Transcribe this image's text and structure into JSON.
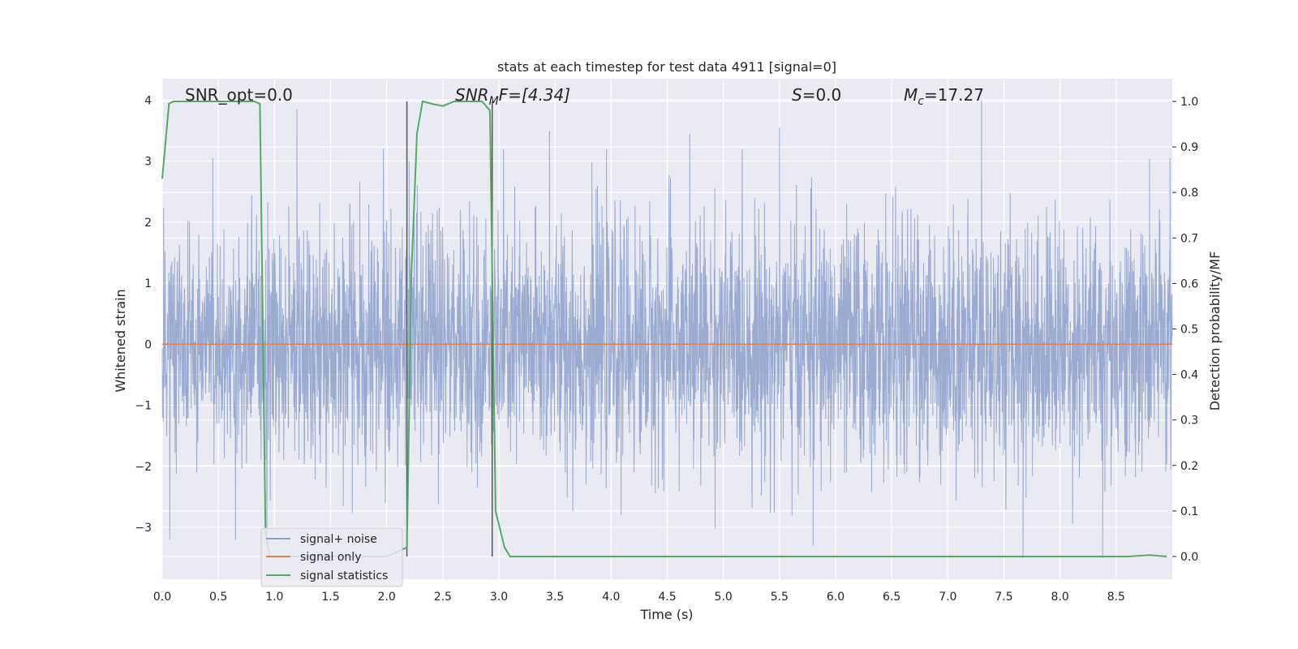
{
  "chart_data": {
    "type": "line",
    "title": "stats at each timestep for test data 4911 [signal=0]",
    "xlabel": "Time (s)",
    "ylabel": "Whitened strain",
    "ylabel_right": "Detection probability/MF",
    "xlim": [
      0.0,
      9.0
    ],
    "ylim": [
      -3.85,
      4.35
    ],
    "ylim_right": [
      -0.05,
      1.05
    ],
    "x_ticks": [
      "0.0",
      "0.5",
      "1.0",
      "1.5",
      "2.0",
      "2.5",
      "3.0",
      "3.5",
      "4.0",
      "4.5",
      "5.0",
      "5.5",
      "6.0",
      "6.5",
      "7.0",
      "7.5",
      "8.0",
      "8.5"
    ],
    "y_ticks": [
      "4",
      "3",
      "2",
      "1",
      "0",
      "−1",
      "−2",
      "−3"
    ],
    "y_ticks_right": [
      "1.0",
      "0.9",
      "0.8",
      "0.7",
      "0.6",
      "0.5",
      "0.4",
      "0.3",
      "0.2",
      "0.1",
      "0.0"
    ],
    "grid": true,
    "legend_position": "lower-left",
    "annotations": {
      "snr_opt": "SNR_opt=0.0",
      "snr_mf_main": "SNR",
      "snr_mf_sub": "M",
      "snr_mf_rest": "F=[4.34]",
      "s_main": "S",
      "s_rest": "=0.0",
      "mc_main": "M",
      "mc_sub": "c",
      "mc_rest": "=17.27"
    },
    "series": [
      {
        "name": "signal+ noise",
        "axis": "left",
        "color": "#8c9fcb",
        "description_of_values": "whitened noise, roughly Gaussian, peak |amplitude| ~ 3 to 4",
        "approx_peaks": [
          [
            0.45,
            3.05
          ],
          [
            1.2,
            3.85
          ],
          [
            2.2,
            3.0
          ],
          [
            3.45,
            3.5
          ],
          [
            4.7,
            3.45
          ],
          [
            5.5,
            3.55
          ],
          [
            7.3,
            4.0
          ],
          [
            8.98,
            3.05
          ],
          [
            7.67,
            -3.5
          ],
          [
            8.38,
            -3.5
          ],
          [
            5.8,
            -3.3
          ]
        ]
      },
      {
        "name": "signal only",
        "axis": "left",
        "color": "#dd8452",
        "x": [
          0.0,
          9.0
        ],
        "y": [
          0.0,
          0.0
        ]
      },
      {
        "name": "signal statistics",
        "axis": "right",
        "color": "#55a868",
        "x": [
          0.0,
          0.06,
          0.1,
          0.15,
          0.3,
          0.5,
          0.7,
          0.82,
          0.87,
          0.92,
          0.96,
          1.0,
          1.2,
          1.5,
          1.8,
          2.0,
          2.18,
          2.22,
          2.27,
          2.32,
          2.4,
          2.5,
          2.6,
          2.7,
          2.85,
          2.92,
          2.97,
          3.05,
          3.1,
          3.5,
          4.0,
          5.0,
          6.0,
          7.0,
          8.0,
          8.6,
          8.8,
          8.95
        ],
        "y": [
          0.83,
          0.995,
          1.0,
          1.0,
          1.0,
          1.0,
          1.0,
          1.0,
          0.995,
          0.05,
          0.0,
          0.0,
          0.0,
          0.0,
          0.0,
          0.0,
          0.02,
          0.62,
          0.93,
          1.0,
          0.995,
          0.99,
          1.0,
          1.0,
          1.0,
          0.98,
          0.1,
          0.02,
          0.0,
          0.0,
          0.0,
          0.0,
          0.0,
          0.0,
          0.0,
          0.0,
          0.003,
          0.0
        ]
      }
    ],
    "vertical_lines": [
      {
        "x": 2.18,
        "ymin_right": 0.0,
        "ymax_right": 1.0,
        "color": "#555555"
      },
      {
        "x": 2.94,
        "ymin_right": 0.0,
        "ymax_right": 1.0,
        "color": "#555555"
      }
    ]
  }
}
